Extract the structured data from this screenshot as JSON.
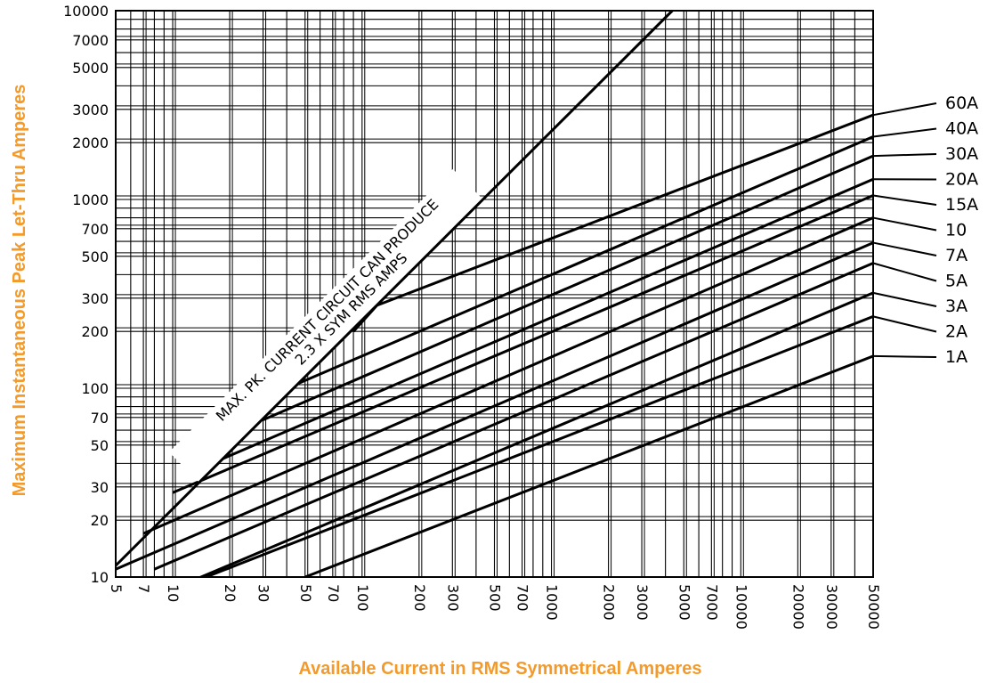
{
  "chart_data": {
    "type": "line",
    "scale": {
      "x": "log",
      "y": "log"
    },
    "grid": true,
    "xlabel": "Available Current in RMS Symmetrical Amperes",
    "ylabel": "Maximum Instantaneous Peak Let-Thru Amperes",
    "xlim": [
      5,
      50000
    ],
    "ylim": [
      10,
      10000
    ],
    "x_ticks": [
      5,
      7,
      10,
      20,
      30,
      50,
      70,
      100,
      200,
      300,
      500,
      700,
      1000,
      2000,
      3000,
      5000,
      7000,
      10000,
      20000,
      30000,
      50000
    ],
    "x_tick_labels": [
      "5",
      "7",
      "10",
      "20",
      "30",
      "50",
      "70",
      "100",
      "200",
      "300",
      "500",
      "700",
      "1000",
      "2000",
      "3000",
      "5000",
      "7000",
      "10000",
      "20000",
      "30000",
      "50000"
    ],
    "y_ticks": [
      10,
      20,
      30,
      50,
      70,
      100,
      200,
      300,
      500,
      700,
      1000,
      2000,
      3000,
      5000,
      7000,
      10000
    ],
    "y_tick_labels": [
      "10",
      "20",
      "30",
      "50",
      "70",
      "100",
      "200",
      "300",
      "500",
      "700",
      "1000",
      "2000",
      "3000",
      "5000",
      "7000",
      "10000"
    ],
    "annotation": {
      "line1": "MAX. PK. CURRENT CIRCUIT CAN PRODUCE",
      "line2": "2.3 X SYM RMS AMPS",
      "points": [
        [
          5,
          11.5
        ],
        [
          4348,
          10000
        ]
      ]
    },
    "series": [
      {
        "name": "60A",
        "points": [
          [
            90,
            200
          ],
          [
            120,
            275
          ],
          [
            50000,
            2800
          ]
        ]
      },
      {
        "name": "40A",
        "points": [
          [
            45,
            105
          ],
          [
            50000,
            2150
          ]
        ]
      },
      {
        "name": "30A",
        "points": [
          [
            30,
            68
          ],
          [
            50000,
            1700
          ]
        ]
      },
      {
        "name": "20A",
        "points": [
          [
            18,
            42
          ],
          [
            50000,
            1280
          ]
        ]
      },
      {
        "name": "15A",
        "points": [
          [
            10,
            28
          ],
          [
            50000,
            1050
          ]
        ]
      },
      {
        "name": "10",
        "points": [
          [
            7,
            17
          ],
          [
            50000,
            800
          ]
        ]
      },
      {
        "name": "7A",
        "points": [
          [
            5,
            11
          ],
          [
            50000,
            590
          ]
        ]
      },
      {
        "name": "5A",
        "points": [
          [
            8,
            11
          ],
          [
            50000,
            460
          ]
        ]
      },
      {
        "name": "3A",
        "points": [
          [
            11,
            9
          ],
          [
            50000,
            320
          ]
        ]
      },
      {
        "name": "2A",
        "points": [
          [
            15,
            10
          ],
          [
            50000,
            240
          ]
        ]
      },
      {
        "name": "1A",
        "points": [
          [
            50,
            10
          ],
          [
            50000,
            148
          ]
        ]
      }
    ]
  }
}
